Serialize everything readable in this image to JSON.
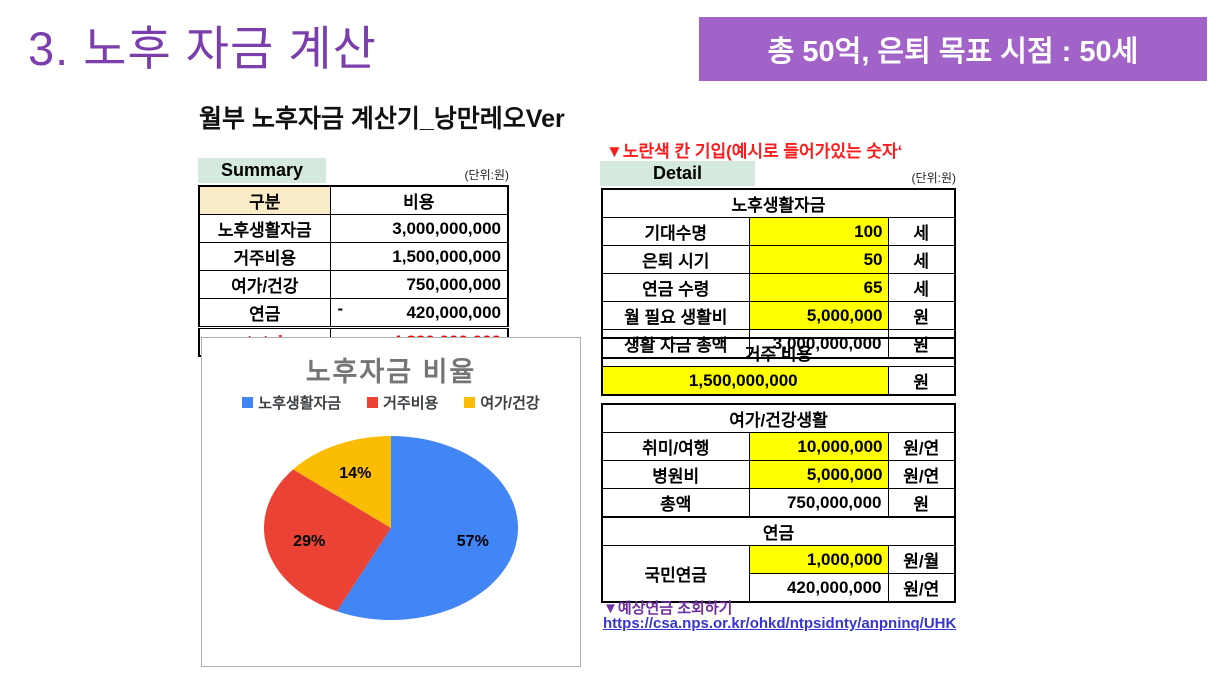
{
  "slide": {
    "title": "3. 노후 자금 계산",
    "badge": "총 50억, 은퇴 목표 시점  : 50세",
    "subtitle": "월부 노후자금 계산기_낭만레오Ver",
    "instruction": "▼노란색 칸 기입(예시로 들어가있는 숫자‘"
  },
  "summary": {
    "label": "Summary",
    "unit_note": "(단위:원)",
    "headers": {
      "gubun": "구분",
      "cost": "비용"
    },
    "rows": [
      {
        "label": "노후생활자금",
        "value": "3,000,000,000"
      },
      {
        "label": "거주비용",
        "value": "1,500,000,000"
      },
      {
        "label": "여가/건강",
        "value": "750,000,000"
      },
      {
        "label": "연금",
        "minus": "-",
        "value": "420,000,000"
      },
      {
        "label": "total",
        "value": "4,830,000,000"
      }
    ]
  },
  "detail": {
    "label": "Detail",
    "unit_note": "(단위:원)",
    "living": {
      "title": "노후생활자금",
      "rows": [
        {
          "label": "기대수명",
          "value": "100",
          "unit": "세"
        },
        {
          "label": "은퇴 시기",
          "value": "50",
          "unit": "세"
        },
        {
          "label": "연금 수령",
          "value": "65",
          "unit": "세"
        },
        {
          "label": "월 필요 생활비",
          "value": "5,000,000",
          "unit": "원"
        },
        {
          "label": "생활 자금 총액",
          "value": "3,000,000,000",
          "unit": "원"
        }
      ]
    },
    "housing": {
      "title": "거주 비용",
      "value": "1,500,000,000",
      "unit": "원"
    },
    "leisure": {
      "title": "여가/건강생활",
      "rows": [
        {
          "label": "취미/여행",
          "value": "10,000,000",
          "unit": "원/연"
        },
        {
          "label": "병원비",
          "value": "5,000,000",
          "unit": "원/연"
        },
        {
          "label": "총액",
          "value": "750,000,000",
          "unit": "원"
        }
      ]
    },
    "pension": {
      "title": "연금",
      "row_label": "국민연금",
      "rows": [
        {
          "value": "1,000,000",
          "unit": "원/월"
        },
        {
          "value": "420,000,000",
          "unit": "원/연"
        }
      ]
    },
    "link_label": "▼예상연금 조회하기",
    "link_url": "https://csa.nps.or.kr/ohkd/ntpsidnty/anpninq/UHK"
  },
  "chart_data": {
    "type": "pie",
    "title": "노후자금 비율",
    "legend_position": "top",
    "labels": [
      "노후생활자금",
      "거주비용",
      "여가/건강"
    ],
    "values": [
      57,
      29,
      14
    ],
    "value_labels": [
      "57%",
      "29%",
      "14%"
    ],
    "colors": [
      "#4285f4",
      "#ea4335",
      "#fbbc04"
    ],
    "start_angle_deg": 0,
    "direction": "clockwise"
  },
  "colors": {
    "title_purple": "#7b3fad",
    "badge_bg": "#a263c9",
    "mint_header": "#d5eadd",
    "category_header": "#faecc8",
    "input_yellow": "#ffff00",
    "total_red": "#fe0000",
    "link_purple": "#7030a0",
    "link_blue": "#3636d2"
  }
}
